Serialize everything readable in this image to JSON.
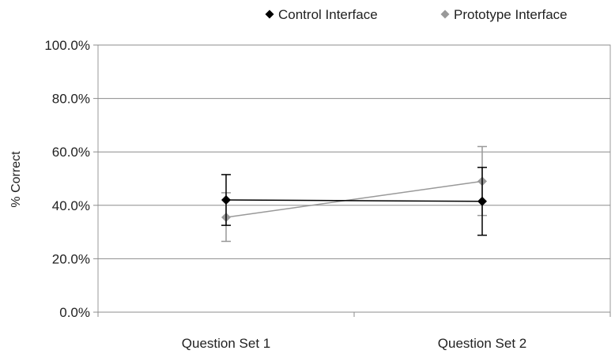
{
  "chart_data": {
    "type": "line",
    "categories": [
      "Question Set 1",
      "Question Set 2"
    ],
    "ylabel": "% Correct",
    "ylim": [
      0,
      100
    ],
    "yticks": [
      0,
      20,
      40,
      60,
      80,
      100
    ],
    "ytick_labels": [
      "0.0%",
      "20.0%",
      "40.0%",
      "60.0%",
      "80.0%",
      "100.0%"
    ],
    "grid": "horizontal",
    "legend_position": "top-right",
    "series": [
      {
        "name": "Control Interface",
        "color": "#000000",
        "marker": "diamond",
        "values": [
          42.0,
          41.5
        ],
        "error_low": [
          32.5,
          28.8
        ],
        "error_high": [
          51.5,
          54.2
        ]
      },
      {
        "name": "Prototype Interface",
        "color": "#999999",
        "marker": "diamond",
        "values": [
          35.5,
          49.0
        ],
        "error_low": [
          26.5,
          36.2
        ],
        "error_high": [
          44.7,
          62.0
        ]
      }
    ]
  }
}
